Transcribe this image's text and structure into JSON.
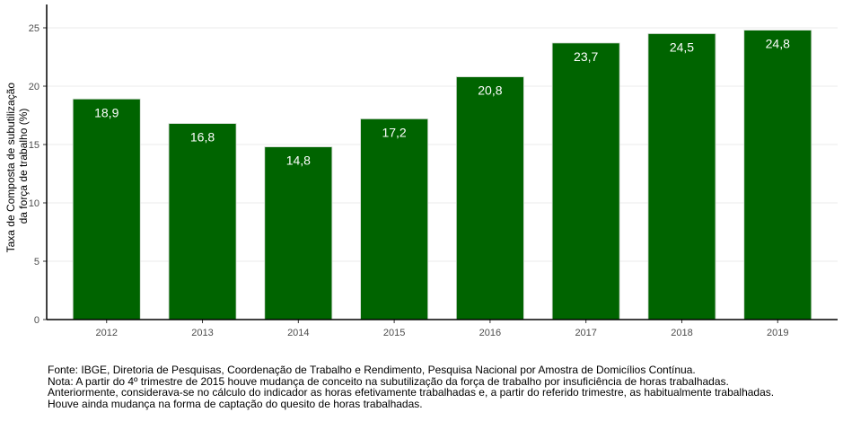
{
  "chart_data": {
    "type": "bar",
    "title": "",
    "xlabel": "",
    "ylabel_lines": [
      "Taxa de Composta de subutilização",
      "da força de trabalho (%)"
    ],
    "categories": [
      "2012",
      "2013",
      "2014",
      "2015",
      "2016",
      "2017",
      "2018",
      "2019"
    ],
    "values": [
      18.9,
      16.8,
      14.8,
      17.2,
      20.8,
      23.7,
      24.5,
      24.8
    ],
    "data_labels": [
      "18,9",
      "16,8",
      "14,8",
      "17,2",
      "20,8",
      "23,7",
      "24,5",
      "24,8"
    ],
    "yticks": [
      0,
      5,
      10,
      15,
      20,
      25
    ],
    "ylim": [
      0,
      27
    ],
    "grid": true,
    "bar_color": "#006400"
  },
  "footnotes": [
    "Fonte: IBGE, Diretoria de Pesquisas, Coordenação de Trabalho e Rendimento, Pesquisa Nacional por Amostra de Domicílios Contínua.",
    "Nota: A partir do 4º trimestre de 2015 houve mudança de conceito na subutilização da força de trabalho por insuficiência de horas trabalhadas.",
    "Anteriormente, considerava-se no cálculo do indicador as horas efetivamente trabalhadas e, a partir do referido trimestre, as habitualmente trabalhadas.",
    "Houve ainda mudança na forma de captação do quesito de horas trabalhadas."
  ]
}
